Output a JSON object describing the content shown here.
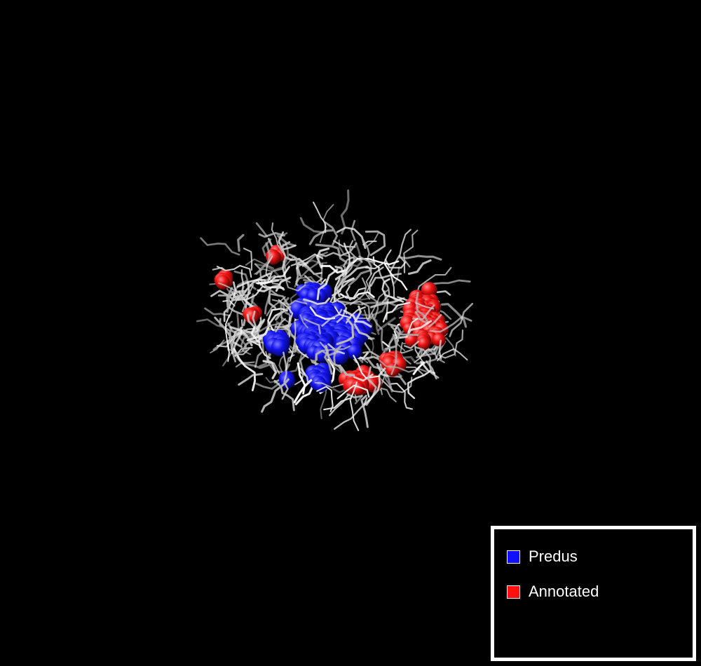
{
  "colors": {
    "background": "#000000",
    "predicted": "#1010ff",
    "annotated": "#ff1010",
    "sticks": "#dddddd"
  },
  "legend": {
    "items": [
      {
        "label": "Predus",
        "color": "#1010ff"
      },
      {
        "label": "Annotated",
        "color": "#ff1010"
      }
    ]
  }
}
